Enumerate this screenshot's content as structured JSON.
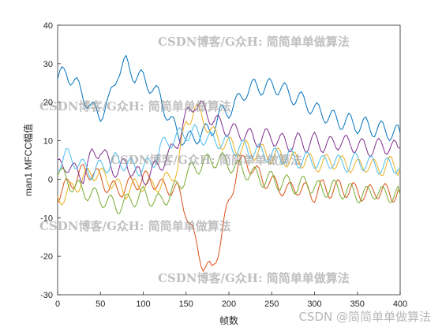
{
  "chart_data": {
    "type": "line",
    "title": "",
    "xlabel": "帧数",
    "ylabel": "man1 MFCC幅值",
    "xlim": [
      0,
      400
    ],
    "ylim": [
      -30,
      40
    ],
    "xticks": [
      0,
      50,
      100,
      150,
      200,
      250,
      300,
      350,
      400
    ],
    "yticks": [
      -30,
      -20,
      -10,
      0,
      10,
      20,
      30,
      40
    ],
    "grid": false,
    "legend": "none",
    "colors": [
      "#0072BD",
      "#D95319",
      "#EDB120",
      "#7E2F8E",
      "#77AC30",
      "#4DBEEE"
    ],
    "series": [
      {
        "color": "#0072BD",
        "x": [
          0,
          10,
          20,
          30,
          40,
          50,
          60,
          70,
          80,
          90,
          100,
          110,
          120,
          130,
          140,
          150,
          160,
          170,
          180,
          190,
          200,
          210,
          220,
          230,
          240,
          250,
          260,
          270,
          280,
          290,
          300,
          310,
          320,
          330,
          340,
          350,
          360,
          370,
          380,
          390,
          400
        ],
        "y": [
          26,
          28,
          25,
          22,
          18,
          17,
          20,
          28,
          30,
          27,
          26,
          24,
          21,
          16,
          12,
          10,
          11,
          12,
          13,
          17,
          18,
          20,
          23,
          24,
          24,
          24,
          24,
          22,
          21,
          20,
          18,
          17,
          16,
          15,
          15,
          14,
          14,
          13,
          13,
          12,
          12
        ]
      },
      {
        "color": "#D95319",
        "x": [
          0,
          10,
          20,
          30,
          40,
          50,
          60,
          70,
          80,
          90,
          100,
          110,
          120,
          130,
          140,
          150,
          160,
          170,
          180,
          190,
          200,
          210,
          220,
          230,
          240,
          250,
          260,
          270,
          280,
          290,
          300,
          310,
          320,
          330,
          340,
          350,
          360,
          370,
          380,
          390,
          400
        ],
        "y": [
          -4,
          -2,
          0,
          2,
          2,
          0,
          -2,
          -3,
          -2,
          -1,
          0,
          0,
          -2,
          -2,
          -3,
          -8,
          -16,
          -22,
          -24,
          -16,
          -6,
          3,
          5,
          2,
          0,
          -1,
          -2,
          -3,
          -2,
          -3,
          -4,
          -2,
          -3,
          -2,
          -3,
          -3,
          -4,
          -3,
          -3,
          -4,
          -3
        ]
      },
      {
        "color": "#EDB120",
        "x": [
          0,
          10,
          20,
          30,
          40,
          50,
          60,
          70,
          80,
          90,
          100,
          110,
          120,
          130,
          140,
          150,
          160,
          170,
          180,
          190,
          200,
          210,
          220,
          230,
          240,
          250,
          260,
          270,
          280,
          290,
          300,
          310,
          320,
          330,
          340,
          350,
          360,
          370,
          380,
          390,
          400
        ],
        "y": [
          -5,
          -4,
          -2,
          0,
          2,
          1,
          0,
          -2,
          -3,
          -2,
          -1,
          -2,
          -1,
          0,
          3,
          15,
          18,
          16,
          12,
          10,
          9,
          8,
          8,
          7,
          7,
          6,
          6,
          5,
          5,
          5,
          4,
          4,
          5,
          4,
          4,
          3,
          4,
          3,
          3,
          4,
          3
        ]
      },
      {
        "color": "#7E2F8E",
        "x": [
          0,
          10,
          20,
          30,
          40,
          50,
          60,
          70,
          80,
          90,
          100,
          110,
          120,
          130,
          140,
          150,
          160,
          170,
          180,
          190,
          200,
          210,
          220,
          230,
          240,
          250,
          260,
          270,
          280,
          290,
          300,
          310,
          320,
          330,
          340,
          350,
          360,
          370,
          380,
          390,
          400
        ],
        "y": [
          3,
          4,
          2,
          1,
          6,
          8,
          4,
          2,
          4,
          2,
          0,
          2,
          4,
          6,
          10,
          16,
          20,
          18,
          16,
          14,
          13,
          12,
          12,
          10,
          11,
          11,
          10,
          9,
          10,
          9,
          10,
          9,
          9,
          10,
          9,
          9,
          8,
          8,
          9,
          8,
          8
        ]
      },
      {
        "color": "#77AC30",
        "x": [
          0,
          10,
          20,
          30,
          40,
          50,
          60,
          70,
          80,
          90,
          100,
          110,
          120,
          130,
          140,
          150,
          160,
          170,
          180,
          190,
          200,
          210,
          220,
          230,
          240,
          250,
          260,
          270,
          280,
          290,
          300,
          310,
          320,
          330,
          340,
          350,
          360,
          370,
          380,
          390,
          400
        ],
        "y": [
          2,
          0,
          -2,
          -3,
          -4,
          -5,
          -6,
          -7,
          -6,
          -5,
          -4,
          -5,
          -6,
          -4,
          -2,
          1,
          3,
          4,
          5,
          5,
          4,
          3,
          2,
          1,
          0,
          0,
          -1,
          -1,
          -2,
          -1,
          -2,
          -3,
          -2,
          -3,
          -3,
          -4,
          -4,
          -3,
          -4,
          -4,
          -4
        ]
      },
      {
        "color": "#4DBEEE",
        "x": [
          0,
          10,
          20,
          30,
          40,
          50,
          60,
          70,
          80,
          90,
          100,
          110,
          120,
          130,
          140,
          150,
          160,
          170,
          180,
          190,
          200,
          210,
          220,
          230,
          240,
          250,
          260,
          270,
          280,
          290,
          300,
          310,
          320,
          330,
          340,
          350,
          360,
          370,
          380,
          390,
          400
        ],
        "y": [
          4,
          6,
          5,
          3,
          2,
          3,
          4,
          5,
          4,
          3,
          3,
          4,
          8,
          10,
          11,
          12,
          12,
          11,
          10,
          10,
          9,
          8,
          8,
          7,
          7,
          6,
          6,
          6,
          5,
          5,
          5,
          4,
          5,
          4,
          4,
          5,
          4,
          4,
          3,
          4,
          3
        ]
      }
    ]
  },
  "watermarks": {
    "overlay": "CSDN博客/G众H: 简简单单做算法",
    "corner": "CSDN @简简单单做算法"
  }
}
